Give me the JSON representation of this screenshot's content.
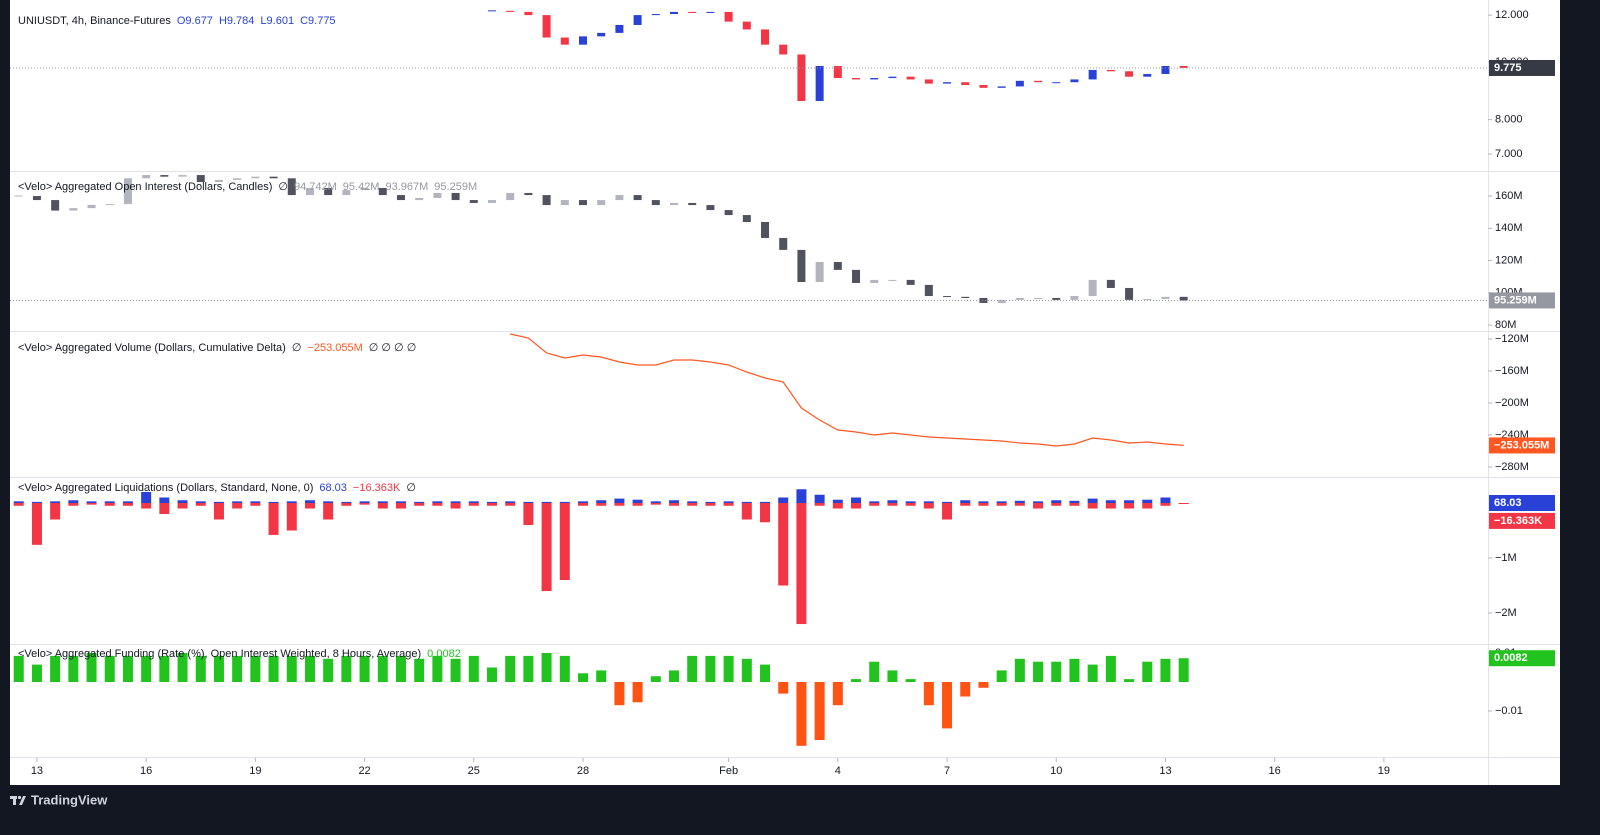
{
  "branding": "TradingView",
  "chart_data": [
    {
      "type": "candlestick",
      "title": "UNIUSDT, 4h, Binance-Futures",
      "ohlc_labels": [
        "O9.677",
        "H9.784",
        "L9.601",
        "C9.775"
      ],
      "x": [
        25.5,
        26,
        26.5,
        27,
        27.5,
        28,
        28.5,
        29,
        29.5,
        30,
        30.5,
        31,
        31.5,
        32,
        32.5,
        33,
        33.5,
        34,
        34.5,
        35,
        35.5,
        36,
        36.5,
        37,
        37.5,
        38,
        38.5,
        39,
        39.5,
        40,
        40.5,
        41,
        41.5,
        42,
        42.5,
        43,
        43.5,
        44,
        44.5
      ],
      "close": [
        12.2,
        12.15,
        12.0,
        11.0,
        10.7,
        11.05,
        11.2,
        11.55,
        12.0,
        12.05,
        12.15,
        12.1,
        12.15,
        11.7,
        11.35,
        10.7,
        10.3,
        8.6,
        9.85,
        9.4,
        9.35,
        9.4,
        9.45,
        9.35,
        9.2,
        9.25,
        9.15,
        9.05,
        9.1,
        9.3,
        9.25,
        9.25,
        9.35,
        9.7,
        9.65,
        9.45,
        9.55,
        9.85,
        9.775
      ],
      "up_color": "#2941d6",
      "down_color": "#f23645",
      "last_value_label": "9.775",
      "last_label_color": "#363a45",
      "log_scale": true,
      "xlim": [
        12.26,
        52.86
      ],
      "ylim": [
        6.58,
        12.24
      ],
      "yticks": [
        {
          "value": 12,
          "label": "12.000"
        },
        {
          "value": 10,
          "label": "10.000"
        },
        {
          "value": 8,
          "label": "8.000"
        },
        {
          "value": 7,
          "label": "7.000"
        }
      ]
    },
    {
      "type": "candlestick",
      "title": "<Velo> Aggregated Open Interest (Dollars, Candles)",
      "legend_values": [
        "∅",
        "94.742M",
        "95.42M",
        "93.967M"
      ],
      "x": [
        12.5,
        13,
        13.5,
        14,
        14.5,
        15,
        15.5,
        16,
        16.5,
        17,
        17.5,
        18,
        18.5,
        19,
        19.5,
        20,
        20.5,
        21,
        21.5,
        22,
        22.5,
        23,
        23.5,
        24,
        24.5,
        25,
        25.5,
        26,
        26.5,
        27,
        27.5,
        28,
        28.5,
        29,
        29.5,
        30,
        30.5,
        31,
        31.5,
        32,
        32.5,
        33,
        33.5,
        34,
        34.5,
        35,
        35.5,
        36,
        36.5,
        37,
        37.5,
        38,
        38.5,
        39,
        39.5,
        40,
        40.5,
        41,
        41.5,
        42,
        42.5,
        43,
        43.5,
        44,
        44.5
      ],
      "close": [
        160000000.0,
        157500000.0,
        151000000.0,
        152500000.0,
        154500000.0,
        155000000.0,
        171000000.0,
        173000000.0,
        172000000.0,
        173000000.0,
        168700000.0,
        170000000.0,
        171000000.0,
        172000000.0,
        171000000.0,
        160600000.0,
        165000000.0,
        160600000.0,
        163700000.0,
        165000000.0,
        160600000.0,
        157500000.0,
        158800000.0,
        161900000.0,
        157500000.0,
        155700000.0,
        157500000.0,
        161900000.0,
        160600000.0,
        154400000.0,
        157500000.0,
        154400000.0,
        157500000.0,
        160600000.0,
        157500000.0,
        154400000.0,
        155700000.0,
        154400000.0,
        151300000.0,
        148200000.0,
        143900000.0,
        134000000.0,
        126600000.0,
        106700000.0,
        119100000.0,
        114200000.0,
        106100000.0,
        108000000.0,
        108000000.0,
        104900000.0,
        98000000.0,
        97500000.0,
        96800000.0,
        93700000.0,
        95600000.0,
        96800000.0,
        96800000.0,
        95600000.0,
        98000000.0,
        108000000.0,
        103000000.0,
        95600000.0,
        96200000.0,
        97500000.0,
        95259000.0
      ],
      "up_color": "#b2b5be",
      "down_color": "#50535e",
      "last_value_label": "95.259M",
      "last_label_color": "#9598a1",
      "xlim": [
        12.26,
        52.86
      ],
      "ylim": [
        75700000.0,
        174900000.0
      ],
      "yticks": [
        {
          "value": 160000000.0,
          "label": "160M"
        },
        {
          "value": 140000000.0,
          "label": "140M"
        },
        {
          "value": 120000000.0,
          "label": "120M"
        },
        {
          "value": 100000000.0,
          "label": "100M"
        },
        {
          "value": 80000000.0,
          "label": "80M"
        }
      ]
    },
    {
      "type": "line",
      "title": "<Velo> Aggregated Volume (Dollars, Cumulative Delta)",
      "legend_values": [
        "∅",
        "∅ ∅ ∅ ∅"
      ],
      "x": [
        26,
        26.5,
        27,
        27.5,
        28,
        28.5,
        29,
        29.5,
        30,
        30.5,
        31,
        31.5,
        32,
        32.5,
        33,
        33.5,
        34,
        34.5,
        35,
        35.5,
        36,
        36.5,
        37,
        37.5,
        38,
        38.5,
        39,
        39.5,
        40,
        40.5,
        41,
        41.5,
        42,
        42.5,
        43,
        43.5,
        44,
        44.5
      ],
      "values": [
        -113750000.0,
        -118750000.0,
        -137500000.0,
        -143750000.0,
        -140000000.0,
        -142500000.0,
        -148750000.0,
        -152500000.0,
        -152500000.0,
        -146250000.0,
        -146250000.0,
        -148750000.0,
        -152500000.0,
        -161250000.0,
        -168750000.0,
        -173750000.0,
        -206250000.0,
        -221250000.0,
        -233750000.0,
        -236250000.0,
        -240000000.0,
        -237500000.0,
        -240000000.0,
        -242500000.0,
        -243750000.0,
        -245000000.0,
        -246250000.0,
        -247500000.0,
        -250000000.0,
        -251250000.0,
        -253750000.0,
        -251250000.0,
        -243750000.0,
        -246250000.0,
        -250000000.0,
        -248750000.0,
        -251250000.0,
        -253055000.0
      ],
      "color": "#ff5722",
      "last_value_label": "−253.055M",
      "last_label_color": "#ff5722",
      "xlim": [
        12.26,
        52.86
      ],
      "ylim": [
        -286250000.0,
        -111250000.0
      ],
      "yticks": [
        {
          "value": -120000000.0,
          "label": "−120M"
        },
        {
          "value": -160000000.0,
          "label": "−160M"
        },
        {
          "value": -200000000.0,
          "label": "−200M"
        },
        {
          "value": -240000000.0,
          "label": "−240M"
        },
        {
          "value": -280000000.0,
          "label": "−280M"
        }
      ]
    },
    {
      "type": "bar",
      "title": "<Velo> Aggregated Liquidations (Dollars, Standard, None, 0)",
      "legend_values": [
        "∅"
      ],
      "x": [
        12.5,
        13,
        13.5,
        14,
        14.5,
        15,
        15.5,
        16,
        16.5,
        17,
        17.5,
        18,
        18.5,
        19,
        19.5,
        20,
        20.5,
        21,
        21.5,
        22,
        22.5,
        23,
        23.5,
        24,
        24.5,
        25,
        25.5,
        26,
        26.5,
        27,
        27.5,
        28,
        28.5,
        29,
        29.5,
        30,
        30.5,
        31,
        31.5,
        32,
        32.5,
        33,
        33.5,
        34,
        34.5,
        35,
        35.5,
        36,
        36.5,
        37,
        37.5,
        38,
        38.5,
        39,
        39.5,
        40,
        40.5,
        41,
        41.5,
        42,
        42.5,
        43,
        43.5,
        44,
        44.5
      ],
      "series": [
        {
          "color": "#2941d6",
          "last_value_label": "68.03",
          "values": [
            30000.0,
            20000.0,
            30000.0,
            50000.0,
            30000.0,
            30000.0,
            30000.0,
            200000.0,
            100000.0,
            50000.0,
            30000.0,
            20000.0,
            30000.0,
            30000.0,
            20000.0,
            30000.0,
            50000.0,
            30000.0,
            20000.0,
            30000.0,
            30000.0,
            30000.0,
            20000.0,
            30000.0,
            30000.0,
            30000.0,
            20000.0,
            30000.0,
            20000.0,
            20000.0,
            20000.0,
            30000.0,
            50000.0,
            80000.0,
            60000.0,
            30000.0,
            50000.0,
            30000.0,
            20000.0,
            30000.0,
            20000.0,
            20000.0,
            100000.0,
            250000.0,
            150000.0,
            60000.0,
            100000.0,
            30000.0,
            50000.0,
            30000.0,
            30000.0,
            20000.0,
            50000.0,
            30000.0,
            30000.0,
            40000.0,
            30000.0,
            50000.0,
            40000.0,
            80000.0,
            50000.0,
            50000.0,
            60000.0,
            100000.0,
            68.03
          ]
        },
        {
          "color": "#f23645",
          "last_value_label": "−16.363K",
          "values": [
            -50000.0,
            -760000.0,
            -300000.0,
            -50000.0,
            -30000.0,
            -50000.0,
            -50000.0,
            -100000.0,
            -200000.0,
            -100000.0,
            -50000.0,
            -300000.0,
            -100000.0,
            -50000.0,
            -580000.0,
            -500000.0,
            -100000.0,
            -300000.0,
            -50000.0,
            -30000.0,
            -100000.0,
            -100000.0,
            -50000.0,
            -50000.0,
            -100000.0,
            -50000.0,
            -50000.0,
            -50000.0,
            -400000.0,
            -1600000.0,
            -1400000.0,
            -50000.0,
            -50000.0,
            -50000.0,
            -50000.0,
            -30000.0,
            -50000.0,
            -50000.0,
            -50000.0,
            -50000.0,
            -300000.0,
            -350000.0,
            -1500000.0,
            -2200000.0,
            -50000.0,
            -100000.0,
            -100000.0,
            -50000.0,
            -50000.0,
            -50000.0,
            -100000.0,
            -300000.0,
            -50000.0,
            -50000.0,
            -50000.0,
            -50000.0,
            -100000.0,
            -50000.0,
            -50000.0,
            -100000.0,
            -100000.0,
            -100000.0,
            -100000.0,
            -50000.0,
            -16363
          ]
        }
      ],
      "xlim": [
        12.26,
        52.86
      ],
      "ylim": [
        -2490000.0,
        454500.0
      ],
      "yticks": [
        {
          "value": -1000000.0,
          "label": "−1M"
        },
        {
          "value": -2000000.0,
          "label": "−2M"
        }
      ]
    },
    {
      "type": "bar",
      "title": "<Velo> Aggregated Funding (Rate (%), Open Interest Weighted, 8 Hours, Average)",
      "x": [
        12.5,
        13,
        13.5,
        14,
        14.5,
        15,
        15.5,
        16,
        16.5,
        17,
        17.5,
        18,
        18.5,
        19,
        19.5,
        20,
        20.5,
        21,
        21.5,
        22,
        22.5,
        23,
        23.5,
        24,
        24.5,
        25,
        25.5,
        26,
        26.5,
        27,
        27.5,
        28,
        28.5,
        29,
        29.5,
        30,
        30.5,
        31,
        31.5,
        32,
        32.5,
        33,
        33.5,
        34,
        34.5,
        35,
        35.5,
        36,
        36.5,
        37,
        37.5,
        38,
        38.5,
        39,
        39.5,
        40,
        40.5,
        41,
        41.5,
        42,
        42.5,
        43,
        43.5,
        44,
        44.5
      ],
      "values": [
        0.009,
        0.006,
        0.009,
        0.009,
        0.01,
        0.009,
        0.009,
        0.009,
        0.009,
        0.01,
        0.009,
        0.009,
        0.009,
        0.009,
        0.009,
        0.009,
        0.009,
        0.008,
        0.009,
        0.009,
        0.009,
        0.009,
        0.008,
        0.009,
        0.008,
        0.009,
        0.005,
        0.009,
        0.009,
        0.01,
        0.009,
        0.003,
        0.004,
        -0.008,
        -0.007,
        0.002,
        0.004,
        0.009,
        0.009,
        0.009,
        0.008,
        0.006,
        -0.004,
        -0.022,
        -0.02,
        -0.008,
        0.001,
        0.007,
        0.004,
        0.001,
        -0.008,
        -0.016,
        -0.005,
        -0.002,
        0.004,
        0.008,
        0.007,
        0.007,
        0.008,
        0.006,
        0.009,
        0.001,
        0.007,
        0.008,
        0.0082
      ],
      "positive_color": "#22c31e",
      "negative_color": "#ff5314",
      "last_value_label": "0.0082",
      "last_label_color": "#22c31e",
      "xlim": [
        12.26,
        52.86
      ],
      "ylim": [
        -0.02586,
        0.01276
      ],
      "yticks": [
        0.01,
        {
          "value": -0.01,
          "label": "−0.01"
        }
      ],
      "xticks": [
        13,
        16,
        19,
        22,
        25,
        28,
        {
          "value": 32,
          "label": "Feb"
        },
        {
          "value": 35,
          "label": "4"
        },
        {
          "value": 38,
          "label": "7"
        },
        {
          "value": 41,
          "label": "10"
        },
        {
          "value": 44,
          "label": "13"
        },
        {
          "value": 47,
          "label": "16"
        },
        {
          "value": 50,
          "label": "19"
        }
      ]
    }
  ]
}
